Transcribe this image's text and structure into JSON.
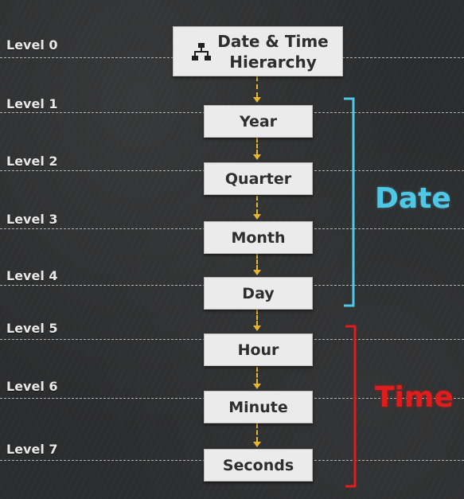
{
  "levels": [
    {
      "label": "Level 0"
    },
    {
      "label": "Level 1"
    },
    {
      "label": "Level 2"
    },
    {
      "label": "Level 3"
    },
    {
      "label": "Level 4"
    },
    {
      "label": "Level 5"
    },
    {
      "label": "Level 6"
    },
    {
      "label": "Level 7"
    }
  ],
  "root": {
    "line1": "Date & Time",
    "line2": "Hierarchy",
    "icon": "hierarchy-icon"
  },
  "nodes": [
    {
      "label": "Year"
    },
    {
      "label": "Quarter"
    },
    {
      "label": "Month"
    },
    {
      "label": "Day"
    },
    {
      "label": "Hour"
    },
    {
      "label": "Minute"
    },
    {
      "label": "Seconds"
    }
  ],
  "groups": {
    "date": {
      "label": "Date",
      "color": "#4fc8e6"
    },
    "time": {
      "label": "Time",
      "color": "#e01c1c"
    }
  },
  "colors": {
    "arrow": "#e8b630",
    "node_bg": "#ebebeb",
    "background": "#2b2c2d"
  }
}
